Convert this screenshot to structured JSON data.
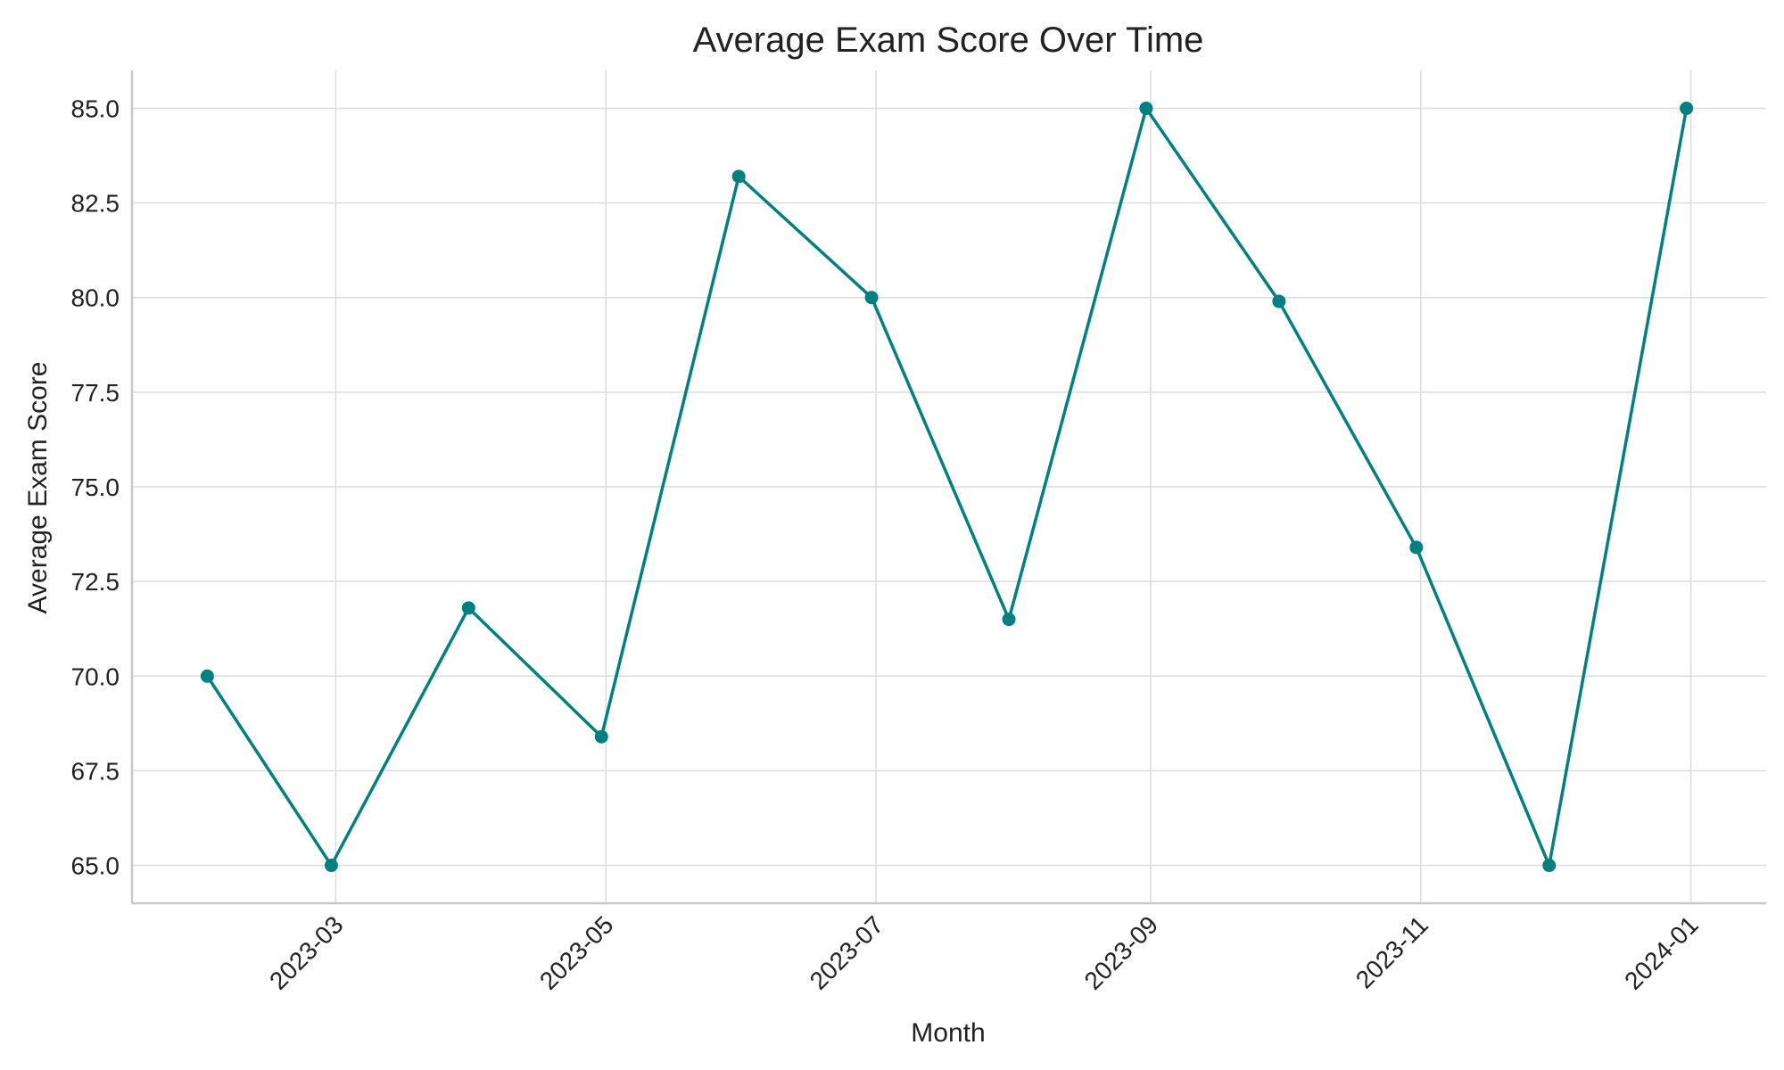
{
  "chart_data": {
    "type": "line",
    "title": "Average Exam Score Over Time",
    "xlabel": "Month",
    "ylabel": "Average Exam Score",
    "x": [
      "2023-01-31",
      "2023-02-28",
      "2023-03-31",
      "2023-04-30",
      "2023-05-31",
      "2023-06-30",
      "2023-07-31",
      "2023-08-31",
      "2023-09-30",
      "2023-10-31",
      "2023-11-30",
      "2023-12-31"
    ],
    "series": [
      {
        "values": [
          70.0,
          65.0,
          71.8,
          68.4,
          83.2,
          80.0,
          71.5,
          85.0,
          79.9,
          73.4,
          65.0,
          85.0
        ]
      }
    ],
    "ylim": [
      64.0,
      86.0
    ],
    "xlim": [
      "2023-01-14",
      "2024-01-18"
    ],
    "y_ticks": [
      "65.0",
      "67.5",
      "70.0",
      "72.5",
      "75.0",
      "77.5",
      "80.0",
      "82.5",
      "85.0"
    ],
    "x_ticks": [
      "2023-03",
      "2023-05",
      "2023-07",
      "2023-09",
      "2023-11",
      "2024-01"
    ],
    "x_tick_dates": [
      "2023-03-01",
      "2023-05-01",
      "2023-07-01",
      "2023-09-01",
      "2023-11-01",
      "2024-01-01"
    ],
    "grid": true,
    "line_color": "#008080",
    "marker": "circle"
  }
}
